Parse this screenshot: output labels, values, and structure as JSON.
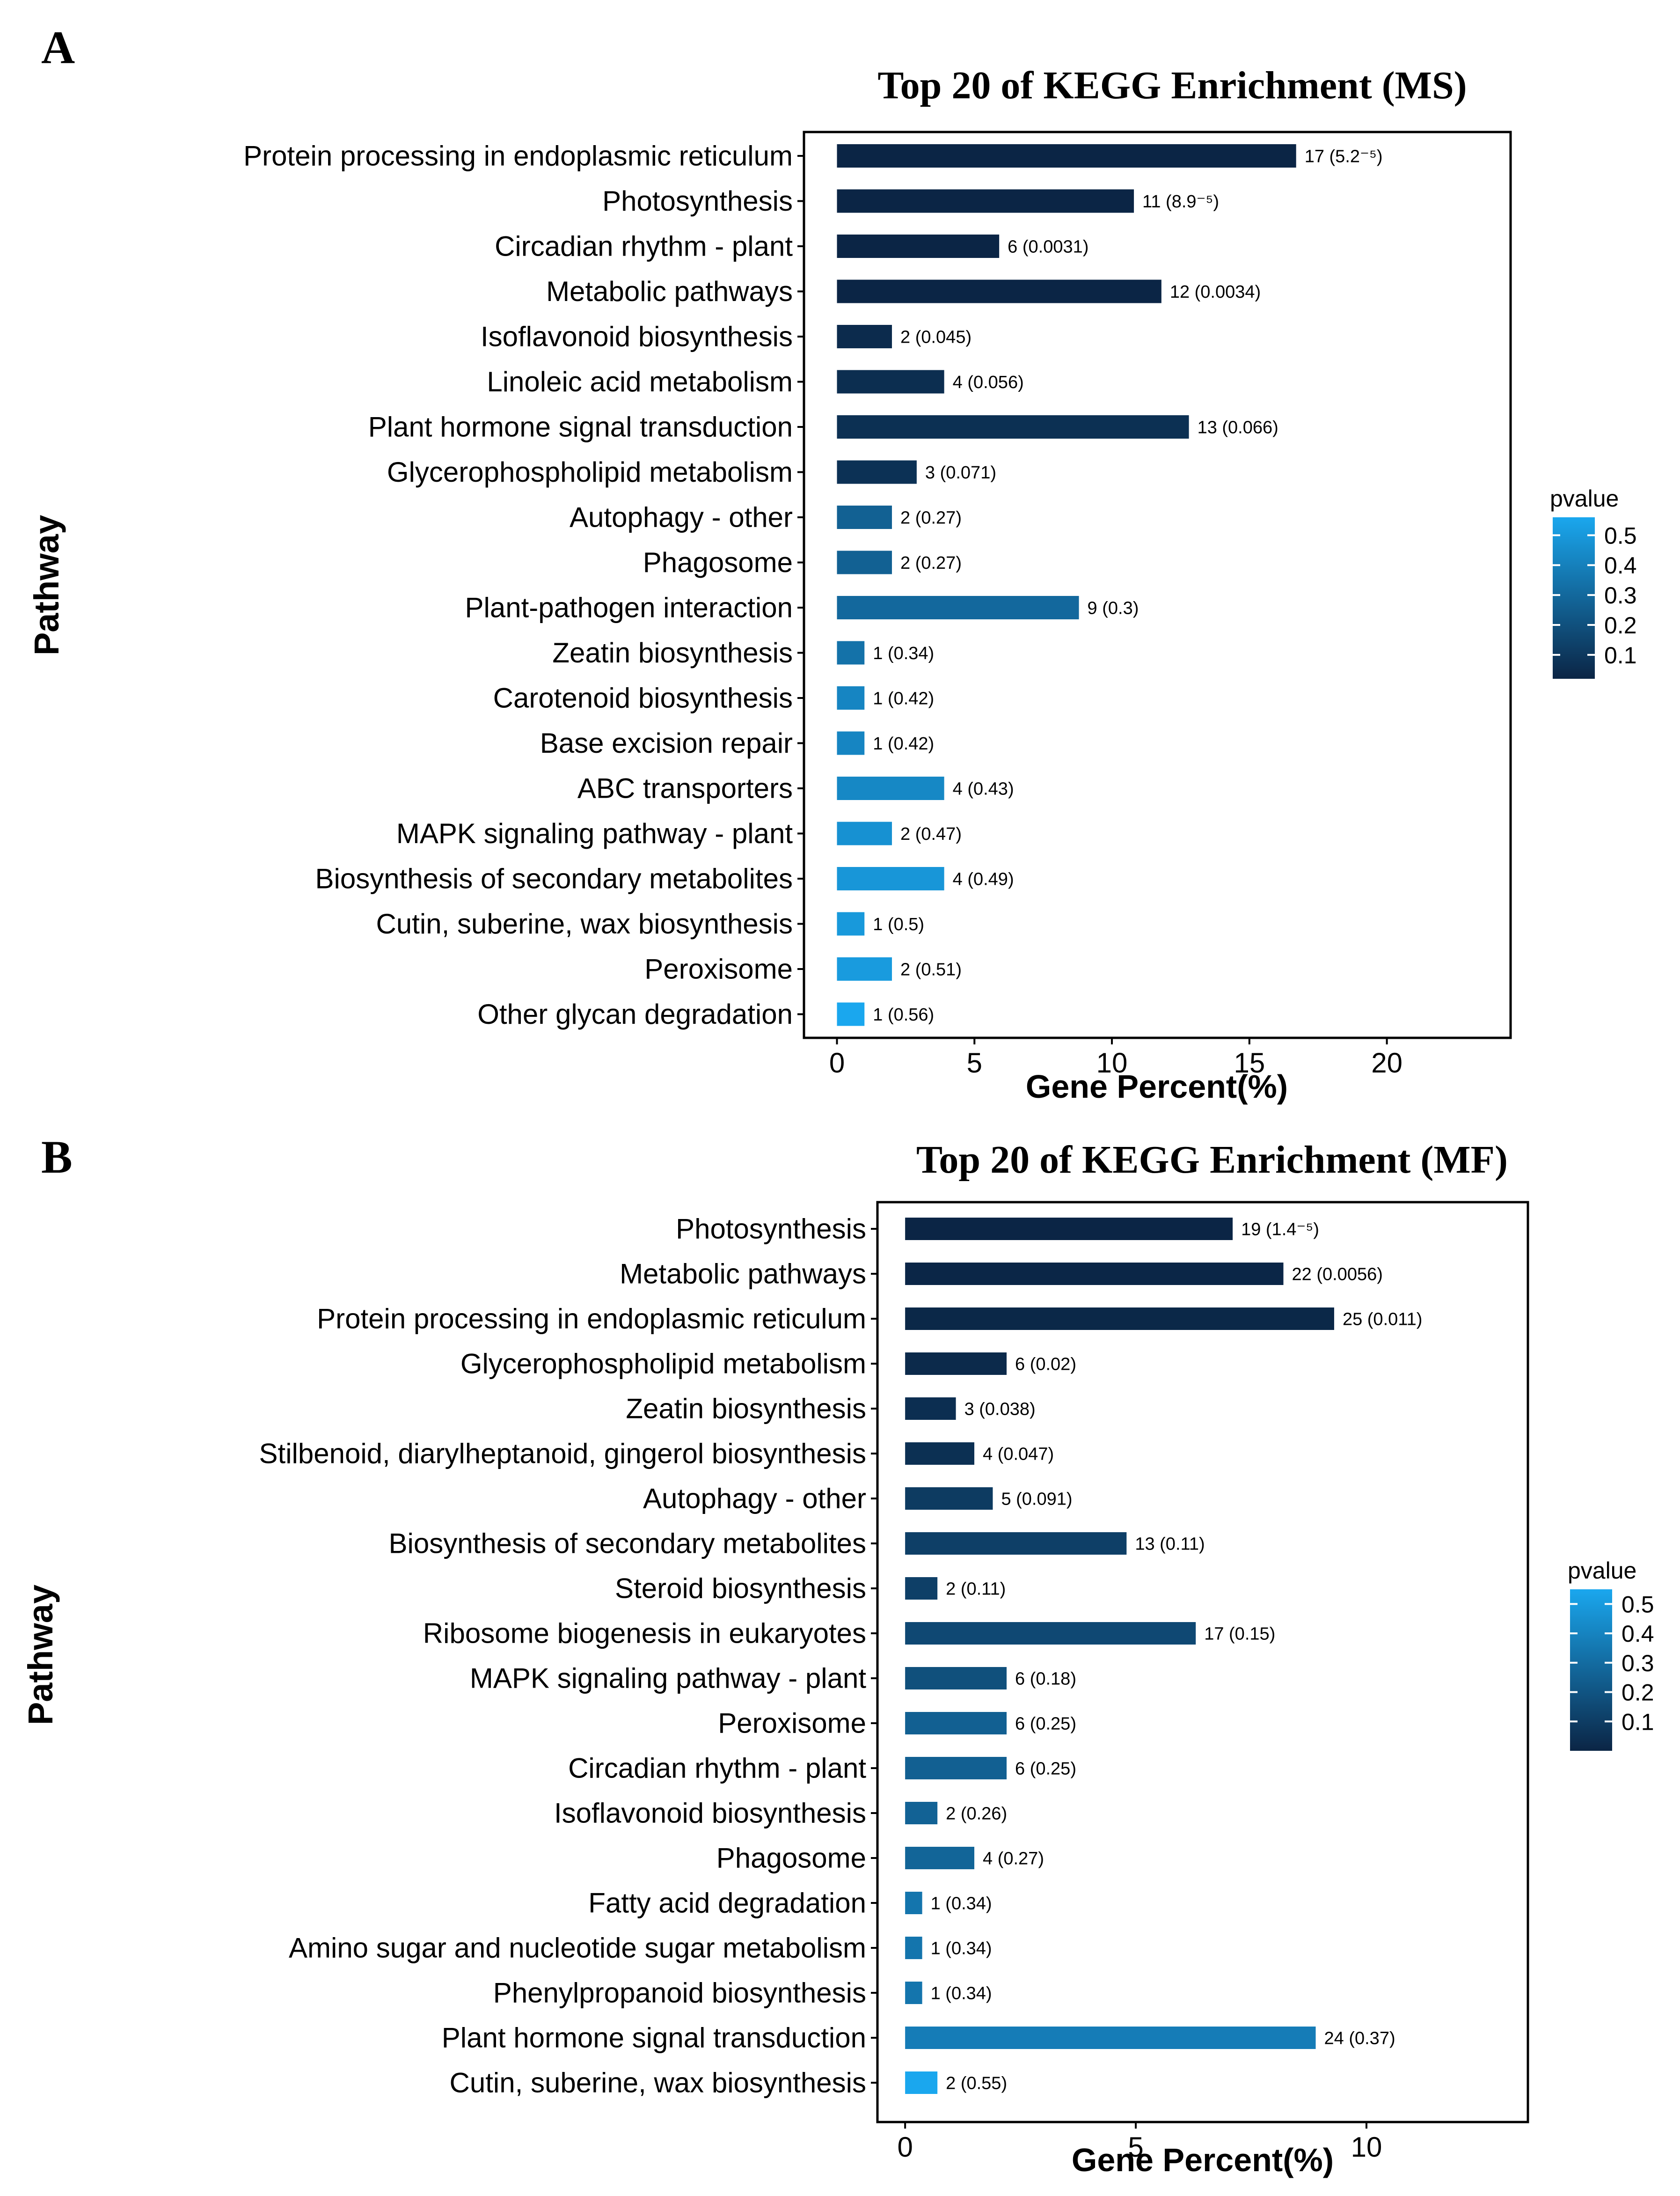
{
  "figure": {
    "colors": {
      "low_pvalue": "#0b2545",
      "high_pvalue": "#1aa7ee",
      "axis": "#000000",
      "background": "#ffffff"
    }
  },
  "chart_data": [
    {
      "panel_letter": "A",
      "type": "bar",
      "orientation": "horizontal",
      "title": "Top 20 of KEGG Enrichment (MS)",
      "xlabel": "Gene Percent(%)",
      "ylabel": "Pathway",
      "xlim": [
        -1.2,
        24.5
      ],
      "xticks": [
        "0",
        "5",
        "10",
        "15",
        "20"
      ],
      "xtick_values": [
        0,
        5,
        10,
        15,
        20
      ],
      "legend": {
        "title": "pvalue",
        "labels": [
          "0.5",
          "0.4",
          "0.3",
          "0.2",
          "0.1"
        ],
        "values": [
          0.5,
          0.4,
          0.3,
          0.2,
          0.1
        ],
        "range": [
          0.02,
          0.56
        ],
        "placement": "right"
      },
      "categories": [
        "Protein processing in endoplasmic reticulum",
        "Photosynthesis",
        "Circadian rhythm - plant",
        "Metabolic pathways",
        "Isoflavonoid biosynthesis",
        "Linoleic acid metabolism",
        "Plant hormone signal transduction",
        "Glycerophospholipid metabolism",
        "Autophagy - other",
        "Phagosome",
        "Plant-pathogen interaction",
        "Zeatin biosynthesis",
        "Carotenoid biosynthesis",
        "Base excision repair",
        "ABC transporters",
        "MAPK signaling pathway - plant",
        "Biosynthesis of secondary metabolites",
        "Cutin, suberine, wax biosynthesis",
        "Peroxisome",
        "Other glycan degradation"
      ],
      "values": [
        16.7,
        10.8,
        5.9,
        11.8,
        2.0,
        3.9,
        12.8,
        2.9,
        2.0,
        2.0,
        8.8,
        1.0,
        1.0,
        1.0,
        3.9,
        2.0,
        3.9,
        1.0,
        2.0,
        1.0
      ],
      "pvalues": [
        5e-05,
        9e-05,
        0.0031,
        0.0034,
        0.045,
        0.056,
        0.066,
        0.071,
        0.27,
        0.27,
        0.3,
        0.34,
        0.42,
        0.42,
        0.43,
        0.47,
        0.49,
        0.5,
        0.51,
        0.56
      ],
      "data_labels": [
        "17 (5.2⁻⁵)",
        "11 (8.9⁻⁵)",
        "6 (0.0031)",
        "12 (0.0034)",
        "2 (0.045)",
        "4 (0.056)",
        "13 (0.066)",
        "3 (0.071)",
        "2 (0.27)",
        "2 (0.27)",
        "9 (0.3)",
        "1 (0.34)",
        "1 (0.42)",
        "1 (0.42)",
        "4 (0.43)",
        "2 (0.47)",
        "4 (0.49)",
        "1 (0.5)",
        "2 (0.51)",
        "1 (0.56)"
      ]
    },
    {
      "panel_letter": "B",
      "type": "bar",
      "orientation": "horizontal",
      "title": "Top 20 of KEGG Enrichment (MF)",
      "xlabel": "Gene Percent(%)",
      "ylabel": "Pathway",
      "xlim": [
        -0.6,
        13.5
      ],
      "xticks": [
        "0",
        "5",
        "10"
      ],
      "xtick_values": [
        0,
        5,
        10
      ],
      "legend": {
        "title": "pvalue",
        "labels": [
          "0.5",
          "0.4",
          "0.3",
          "0.2",
          "0.1"
        ],
        "values": [
          0.5,
          0.4,
          0.3,
          0.2,
          0.1
        ],
        "range": [
          0.0,
          0.55
        ],
        "placement": "right"
      },
      "categories": [
        "Photosynthesis",
        "Metabolic pathways",
        "Protein processing in endoplasmic reticulum",
        "Glycerophospholipid metabolism",
        "Zeatin biosynthesis",
        "Stilbenoid, diarylheptanoid, gingerol biosynthesis",
        "Autophagy - other",
        "Biosynthesis of secondary metabolites",
        "Steroid biosynthesis",
        "Ribosome biogenesis in eukaryotes",
        "MAPK signaling pathway - plant",
        "Peroxisome",
        "Circadian rhythm - plant",
        "Isoflavonoid biosynthesis",
        "Phagosome",
        "Fatty acid degradation",
        "Amino sugar and nucleotide sugar metabolism",
        "Phenylpropanoid biosynthesis",
        "Plant hormone signal transduction",
        "Cutin, suberine, wax biosynthesis"
      ],
      "values": [
        7.1,
        8.2,
        9.3,
        2.2,
        1.1,
        1.5,
        1.9,
        4.8,
        0.7,
        6.3,
        2.2,
        2.2,
        2.2,
        0.7,
        1.5,
        0.37,
        0.37,
        0.37,
        8.9,
        0.7
      ],
      "pvalues": [
        1.4e-05,
        0.0056,
        0.011,
        0.02,
        0.038,
        0.047,
        0.091,
        0.11,
        0.11,
        0.15,
        0.18,
        0.25,
        0.25,
        0.26,
        0.27,
        0.34,
        0.34,
        0.34,
        0.37,
        0.55
      ],
      "data_labels": [
        "19 (1.4⁻⁵)",
        "22 (0.0056)",
        "25 (0.011)",
        "6 (0.02)",
        "3 (0.038)",
        "4 (0.047)",
        "5 (0.091)",
        "13 (0.11)",
        "2 (0.11)",
        "17 (0.15)",
        "6 (0.18)",
        "6 (0.25)",
        "6 (0.25)",
        "2 (0.26)",
        "4 (0.27)",
        "1 (0.34)",
        "1 (0.34)",
        "1 (0.34)",
        "24 (0.37)",
        "2 (0.55)"
      ]
    }
  ]
}
